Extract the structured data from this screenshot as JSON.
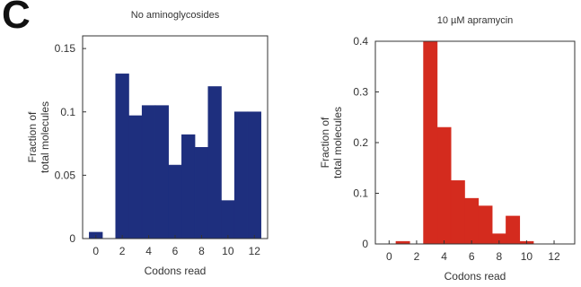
{
  "panel_label": "C",
  "colors": {
    "left_bars": "#1e2f7e",
    "right_bars": "#d42b1e",
    "axis": "#333333"
  },
  "chart_data": [
    {
      "type": "bar",
      "title": "No aminoglycosides",
      "xlabel": "Codons read",
      "ylabel": "Fraction of total molecules",
      "x_ticks": [
        0,
        2,
        4,
        6,
        8,
        10,
        12
      ],
      "y_ticks": [
        0,
        0.05,
        0.1,
        0.15
      ],
      "y_tick_labels": [
        "0",
        "0.05",
        "0.1",
        "0.15"
      ],
      "xlim": [
        -1,
        13
      ],
      "ylim": [
        0,
        0.16
      ],
      "x": [
        0,
        2,
        3,
        4,
        5,
        6,
        7,
        8,
        9,
        10,
        11,
        12
      ],
      "values": [
        0.005,
        0.13,
        0.097,
        0.105,
        0.105,
        0.058,
        0.082,
        0.072,
        0.12,
        0.03,
        0.1,
        0.1
      ]
    },
    {
      "type": "bar",
      "title": "10 µM apramycin",
      "xlabel": "Codons read",
      "ylabel": "Fraction of total molecules",
      "x_ticks": [
        0,
        2,
        4,
        6,
        8,
        10,
        12
      ],
      "y_ticks": [
        0,
        0.1,
        0.2,
        0.3,
        0.4
      ],
      "y_tick_labels": [
        "0",
        "0.1",
        "0.2",
        "0.3",
        "0.4"
      ],
      "xlim": [
        -1,
        13.5
      ],
      "ylim": [
        0,
        0.4
      ],
      "x": [
        1,
        3,
        4,
        5,
        6,
        7,
        8,
        9,
        10
      ],
      "values": [
        0.005,
        0.4,
        0.23,
        0.125,
        0.09,
        0.075,
        0.02,
        0.055,
        0.005
      ]
    }
  ]
}
